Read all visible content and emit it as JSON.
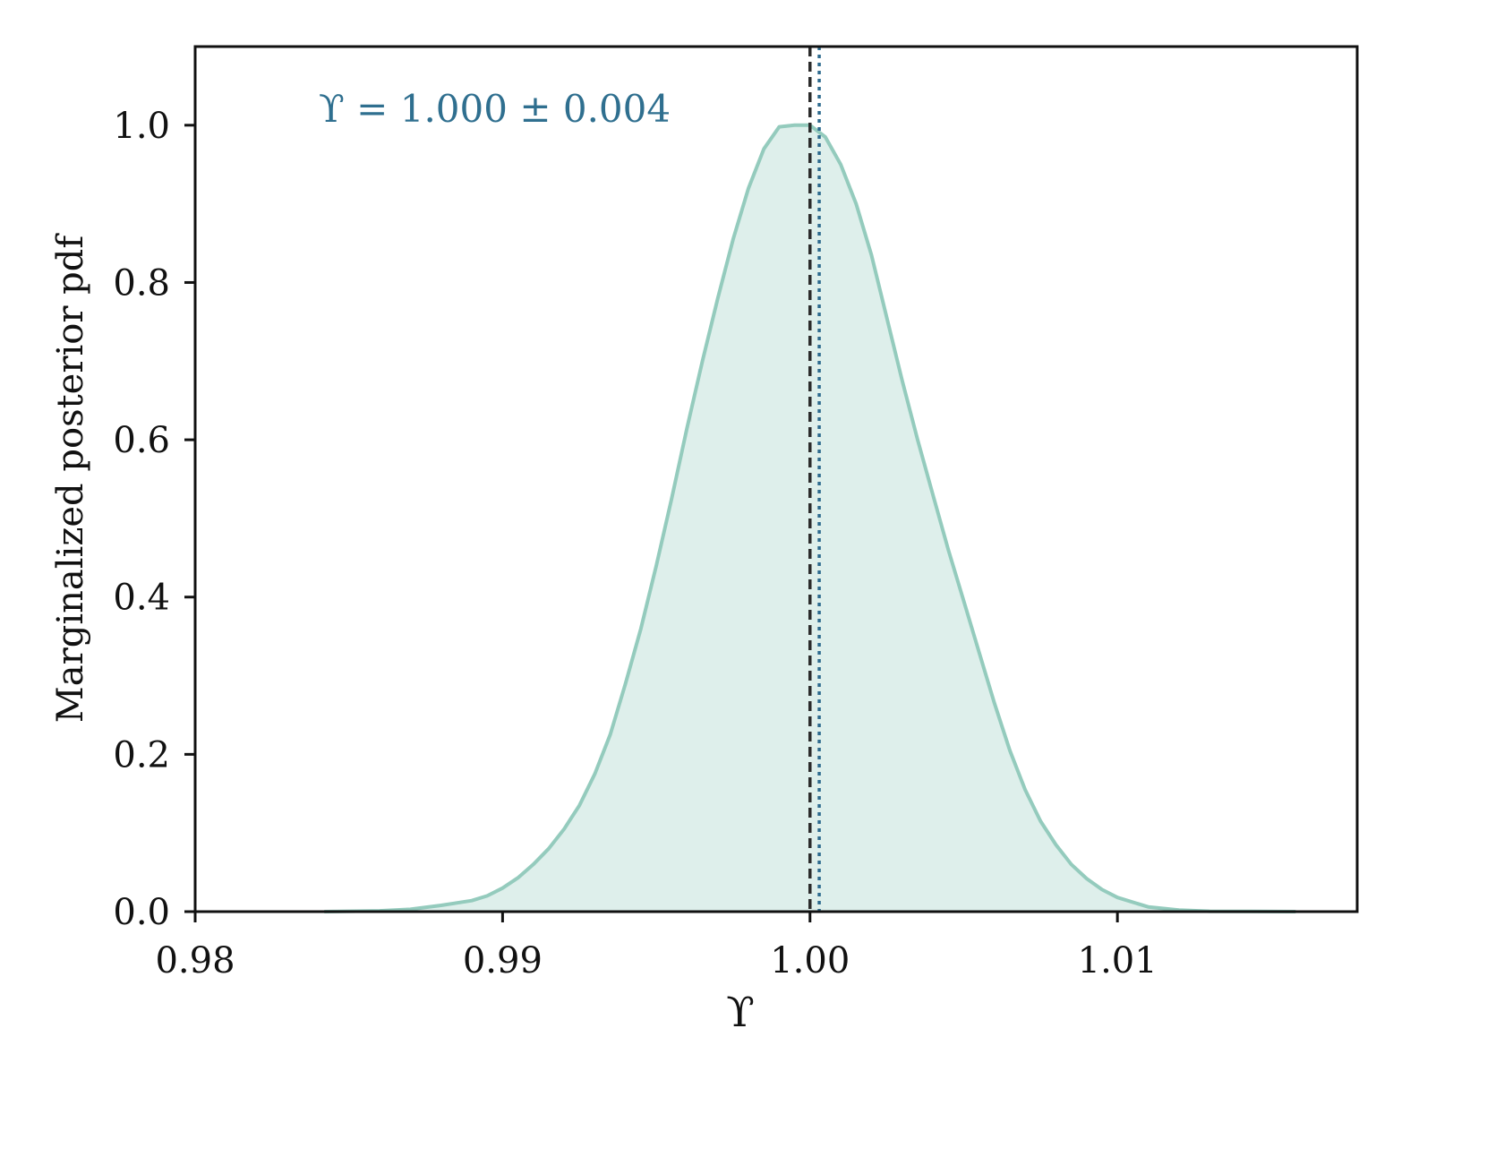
{
  "chart_data": {
    "type": "area",
    "title": "",
    "xlabel": "ϒ",
    "ylabel": "Marginalized posterior pdf",
    "xlim": [
      0.98,
      1.0178
    ],
    "ylim": [
      0.0,
      1.1
    ],
    "xticks": [
      0.98,
      0.99,
      1.0,
      1.01
    ],
    "xtick_labels": [
      "0.98",
      "0.99",
      "1.00",
      "1.01"
    ],
    "yticks": [
      0.0,
      0.2,
      0.4,
      0.6,
      0.8,
      1.0
    ],
    "ytick_labels": [
      "0.0",
      "0.2",
      "0.4",
      "0.6",
      "0.8",
      "1.0"
    ],
    "grid": false,
    "annotation": "ϒ = 1.000 ± 0.004",
    "series": [
      {
        "x": [
          0.9842,
          0.986,
          0.987,
          0.988,
          0.989,
          0.9895,
          0.99,
          0.9905,
          0.991,
          0.9915,
          0.992,
          0.9925,
          0.993,
          0.9935,
          0.994,
          0.9945,
          0.995,
          0.9955,
          0.996,
          0.9965,
          0.997,
          0.9975,
          0.998,
          0.9985,
          0.999,
          0.9995,
          1.0,
          1.0005,
          1.001,
          1.0015,
          1.002,
          1.0025,
          1.003,
          1.0035,
          1.004,
          1.0045,
          1.005,
          1.0055,
          1.006,
          1.0065,
          1.007,
          1.0075,
          1.008,
          1.0085,
          1.009,
          1.0095,
          1.01,
          1.011,
          1.012,
          1.013,
          1.0158
        ],
        "y": [
          0.0,
          0.001,
          0.003,
          0.008,
          0.014,
          0.02,
          0.03,
          0.043,
          0.06,
          0.08,
          0.105,
          0.135,
          0.175,
          0.225,
          0.29,
          0.36,
          0.44,
          0.525,
          0.615,
          0.7,
          0.78,
          0.855,
          0.92,
          0.97,
          0.998,
          1.0,
          1.0,
          0.985,
          0.95,
          0.9,
          0.835,
          0.755,
          0.675,
          0.6,
          0.53,
          0.46,
          0.395,
          0.33,
          0.265,
          0.205,
          0.155,
          0.115,
          0.085,
          0.06,
          0.042,
          0.028,
          0.018,
          0.006,
          0.002,
          0.0005,
          0.0
        ]
      }
    ],
    "vlines": [
      {
        "x": 1.0,
        "style": "dashed",
        "color": "#2b2b2b"
      },
      {
        "x": 1.0003,
        "style": "dotted",
        "color": "#2d6a8e"
      }
    ],
    "colors": {
      "fill": "#deefeb",
      "line": "#94cbbd",
      "annotation": "#2f6f8f",
      "axis": "#111111"
    }
  }
}
